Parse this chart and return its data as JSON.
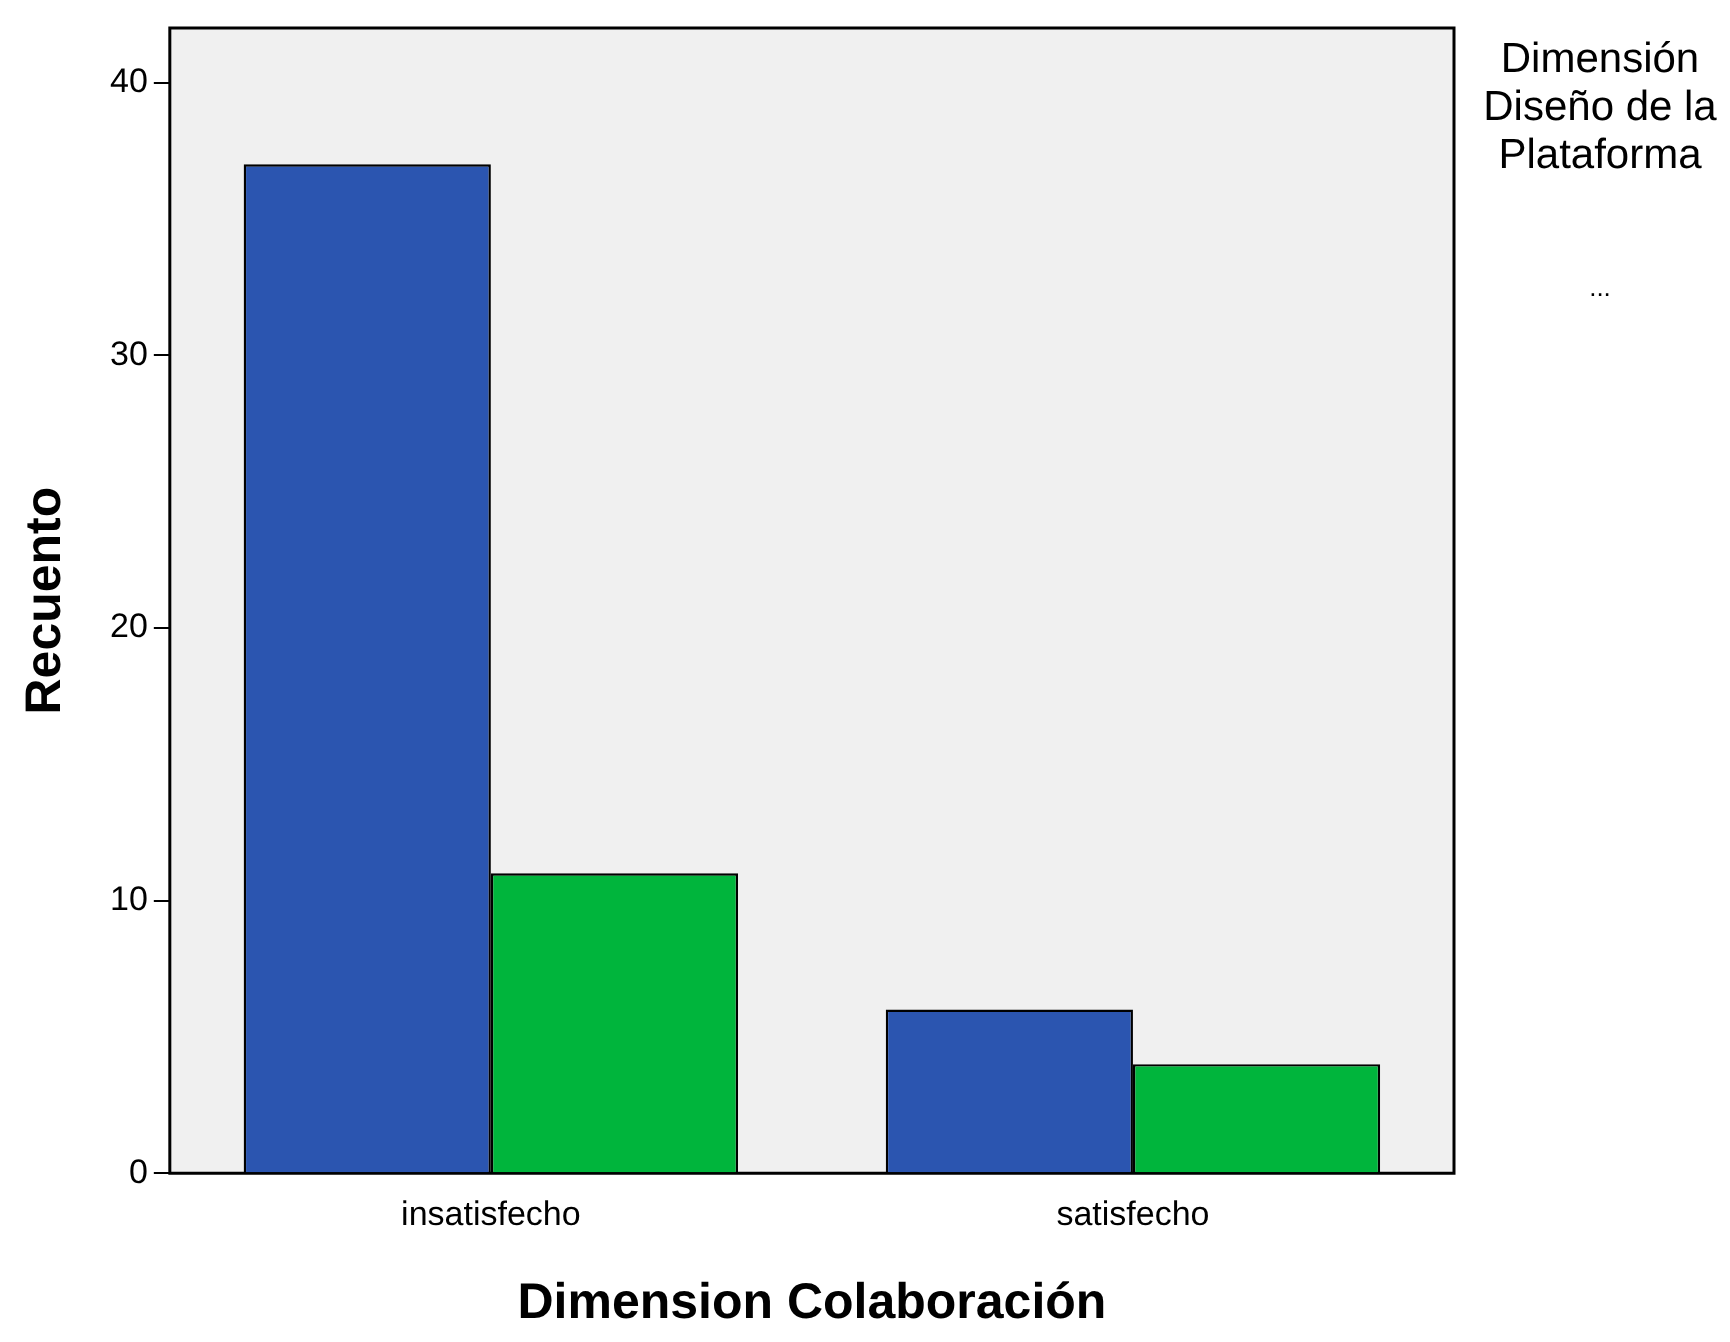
{
  "chart_data": {
    "type": "bar",
    "xlabel": "Dimension Colaboración",
    "ylabel": "Recuento",
    "legend_title": "Dimensión Diseño de la Plataforma",
    "annotations": [
      "..."
    ],
    "categories": [
      "insatisfecho",
      "satisfecho"
    ],
    "series": [
      {
        "color": "#2b55b0",
        "values": [
          37,
          6
        ]
      },
      {
        "color": "#00b53c",
        "values": [
          11,
          4
        ]
      }
    ],
    "ylim": [
      0,
      42
    ],
    "yticks": [
      0,
      10,
      20,
      30,
      40
    ],
    "grid": false,
    "legend": false
  }
}
